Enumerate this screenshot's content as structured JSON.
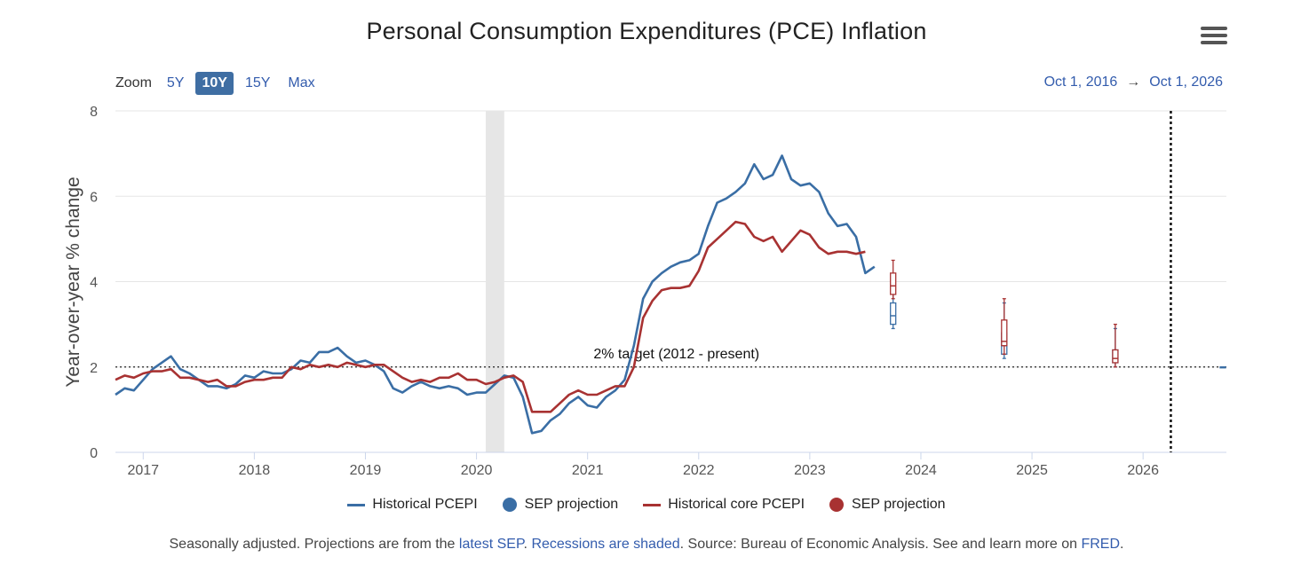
{
  "header": {
    "title": "Personal Consumption Expenditures (PCE) Inflation",
    "menu_icon": "hamburger-menu-icon"
  },
  "zoom": {
    "label": "Zoom",
    "buttons": [
      {
        "label": "5Y",
        "active": false
      },
      {
        "label": "10Y",
        "active": true
      },
      {
        "label": "15Y",
        "active": false
      },
      {
        "label": "Max",
        "active": false
      }
    ]
  },
  "range": {
    "from": "Oct 1, 2016",
    "arrow": "→",
    "to": "Oct 1, 2026"
  },
  "legend": [
    {
      "label": "Historical PCEPI",
      "kind": "line",
      "color": "#3a6ea5"
    },
    {
      "label": "SEP projection",
      "kind": "dot",
      "color": "#3a6ea5"
    },
    {
      "label": "Historical core PCEPI",
      "kind": "line",
      "color": "#a83232"
    },
    {
      "label": "SEP projection",
      "kind": "dot",
      "color": "#a83232"
    }
  ],
  "footer": {
    "t1": "Seasonally adjusted. Projections are from the ",
    "l1": "latest SEP",
    "t2": ". ",
    "l2": "Recessions are shaded",
    "t3": ". Source: Bureau of Economic Analysis. See and learn more on ",
    "l3": "FRED",
    "t4": "."
  },
  "chart_data": {
    "type": "line",
    "title": "Personal Consumption Expenditures (PCE) Inflation",
    "ylabel": "Year-over-year % change",
    "xlabel": "",
    "ylim": [
      0,
      8
    ],
    "yticks": [
      0,
      2,
      4,
      6,
      8
    ],
    "xlim": [
      2016.75,
      2026.75
    ],
    "xticks": [
      2017,
      2018,
      2019,
      2020,
      2021,
      2022,
      2023,
      2024,
      2025,
      2026
    ],
    "grid": true,
    "legend_position": "bottom",
    "recession": [
      2020.083,
      2020.25
    ],
    "target_line": {
      "y": 2.0,
      "label": "2% target (2012 - present)"
    },
    "vertical_marker": 2026.25,
    "series": [
      {
        "name": "Historical PCEPI",
        "color": "#3a6ea5",
        "x_start": 2016.75,
        "step": 0.08333,
        "values": [
          1.35,
          1.5,
          1.45,
          1.7,
          1.95,
          2.1,
          2.25,
          1.95,
          1.85,
          1.7,
          1.55,
          1.55,
          1.5,
          1.6,
          1.8,
          1.75,
          1.9,
          1.85,
          1.85,
          1.95,
          2.15,
          2.1,
          2.35,
          2.35,
          2.45,
          2.25,
          2.1,
          2.15,
          2.05,
          1.9,
          1.5,
          1.4,
          1.55,
          1.65,
          1.55,
          1.5,
          1.55,
          1.5,
          1.35,
          1.4,
          1.4,
          1.6,
          1.8,
          1.75,
          1.3,
          0.45,
          0.5,
          0.75,
          0.9,
          1.15,
          1.3,
          1.1,
          1.05,
          1.3,
          1.45,
          1.7,
          2.5,
          3.6,
          4.0,
          4.2,
          4.35,
          4.45,
          4.5,
          4.65,
          5.3,
          5.85,
          5.95,
          6.1,
          6.3,
          6.75,
          6.4,
          6.5,
          6.95,
          6.4,
          6.25,
          6.3,
          6.1,
          5.6,
          5.3,
          5.35,
          5.05,
          4.2,
          4.35
        ]
      },
      {
        "name": "Historical core PCEPI",
        "color": "#a83232",
        "x_start": 2016.75,
        "step": 0.08333,
        "values": [
          1.7,
          1.8,
          1.75,
          1.85,
          1.9,
          1.9,
          1.95,
          1.75,
          1.75,
          1.7,
          1.65,
          1.7,
          1.55,
          1.55,
          1.65,
          1.7,
          1.7,
          1.75,
          1.75,
          2.0,
          1.95,
          2.05,
          2.0,
          2.05,
          2.0,
          2.1,
          2.05,
          2.0,
          2.05,
          2.05,
          1.9,
          1.75,
          1.65,
          1.7,
          1.65,
          1.75,
          1.75,
          1.85,
          1.7,
          1.7,
          1.6,
          1.65,
          1.75,
          1.8,
          1.65,
          0.95,
          0.95,
          0.95,
          1.15,
          1.35,
          1.45,
          1.35,
          1.35,
          1.45,
          1.55,
          1.55,
          2.0,
          3.15,
          3.55,
          3.8,
          3.85,
          3.85,
          3.9,
          4.25,
          4.8,
          5.0,
          5.2,
          5.4,
          5.35,
          5.05,
          4.95,
          5.05,
          4.7,
          4.95,
          5.2,
          5.1,
          4.8,
          4.65,
          4.7,
          4.7,
          4.65,
          4.7
        ]
      }
    ],
    "sep_projections": [
      {
        "name": "SEP projection",
        "color": "#3a6ea5",
        "points": [
          {
            "x": 2023.75,
            "low": 2.9,
            "q1": 3.0,
            "median": 3.2,
            "q3": 3.5,
            "high": 4.1
          },
          {
            "x": 2024.75,
            "low": 2.2,
            "q1": 2.3,
            "median": 2.5,
            "q3": 2.8,
            "high": 3.5
          },
          {
            "x": 2025.75,
            "low": 2.0,
            "q1": 2.1,
            "median": 2.2,
            "q3": 2.4,
            "high": 2.9
          },
          {
            "x": 2026.75,
            "low": 2.0,
            "q1": 2.0,
            "median": 2.0,
            "q3": 2.0,
            "high": 2.0
          }
        ]
      },
      {
        "name": "SEP projection",
        "color": "#a83232",
        "points": [
          {
            "x": 2023.75,
            "low": 3.6,
            "q1": 3.7,
            "median": 3.9,
            "q3": 4.2,
            "high": 4.5
          },
          {
            "x": 2024.75,
            "low": 2.3,
            "q1": 2.5,
            "median": 2.6,
            "q3": 3.1,
            "high": 3.6
          },
          {
            "x": 2025.75,
            "low": 2.0,
            "q1": 2.1,
            "median": 2.2,
            "q3": 2.4,
            "high": 3.0
          }
        ]
      }
    ]
  }
}
